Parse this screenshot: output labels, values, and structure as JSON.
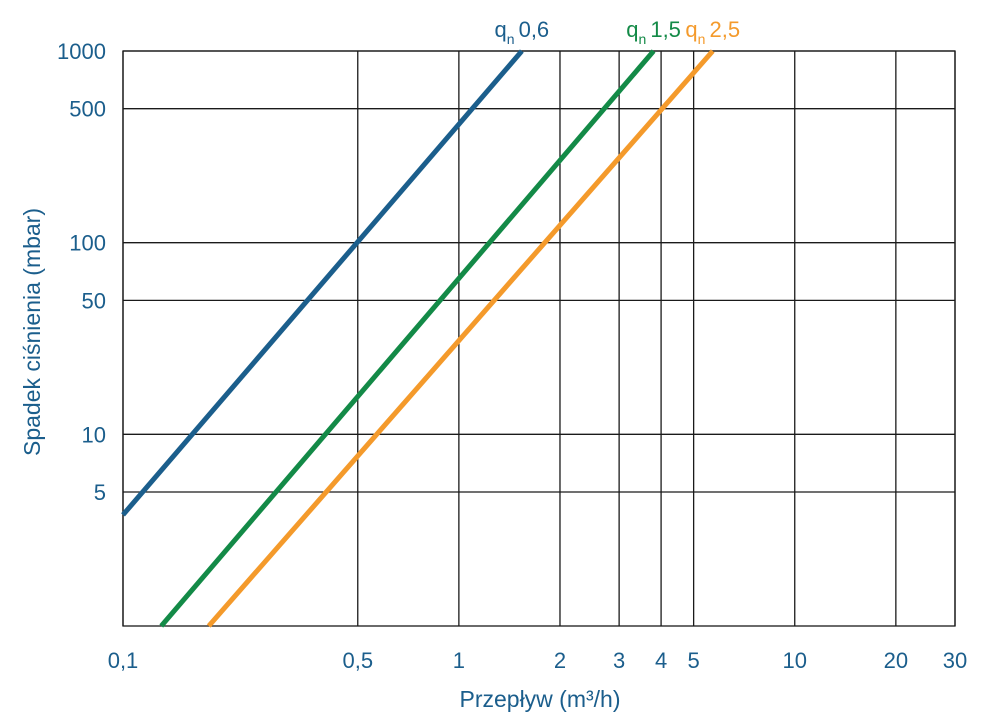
{
  "chart_data": {
    "type": "line",
    "xlabel": "Przepływ (m³/h)",
    "ylabel": "Spadek ciśnienia (mbar)",
    "x_scale": "log",
    "y_scale": "log",
    "xlim": [
      0.1,
      30
    ],
    "ylim": [
      1,
      1000
    ],
    "grid": true,
    "x_ticks": [
      {
        "value": 0.1,
        "label": "0,1"
      },
      {
        "value": 0.5,
        "label": "0,5"
      },
      {
        "value": 1,
        "label": "1"
      },
      {
        "value": 2,
        "label": "2"
      },
      {
        "value": 3,
        "label": "3"
      },
      {
        "value": 4,
        "label": "4"
      },
      {
        "value": 5,
        "label": "5"
      },
      {
        "value": 10,
        "label": "10"
      },
      {
        "value": 20,
        "label": "20"
      },
      {
        "value": 30,
        "label": "30"
      }
    ],
    "y_ticks": [
      {
        "value": 5,
        "label": "5"
      },
      {
        "value": 10,
        "label": "10"
      },
      {
        "value": 50,
        "label": "50"
      },
      {
        "value": 100,
        "label": "100"
      },
      {
        "value": 500,
        "label": "500"
      },
      {
        "value": 1000,
        "label": "1000"
      }
    ],
    "series": [
      {
        "name_main": "q",
        "name_sub": "n",
        "name_value": "0,6",
        "color": "#1b5e8c",
        "x": [
          0.1,
          1.54
        ],
        "y": [
          3.8,
          1000
        ]
      },
      {
        "name_main": "q",
        "name_sub": "n",
        "name_value": "1,5",
        "color": "#138a47",
        "x": [
          0.13,
          3.8
        ],
        "y": [
          1,
          1000
        ]
      },
      {
        "name_main": "q",
        "name_sub": "n",
        "name_value": "2,5",
        "color": "#f49a2b",
        "x": [
          0.18,
          5.7
        ],
        "y": [
          1,
          1000
        ]
      }
    ]
  }
}
